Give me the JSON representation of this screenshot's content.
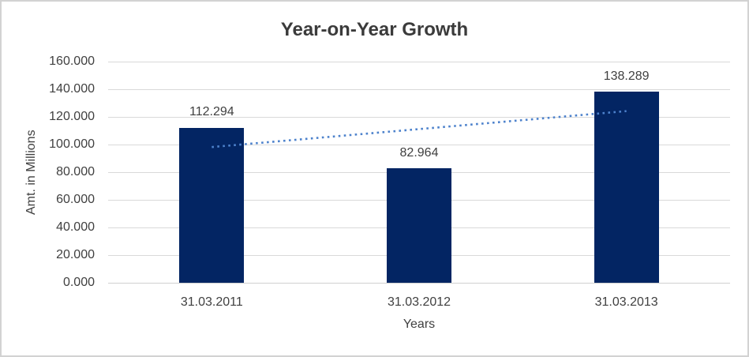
{
  "chart_data": {
    "type": "bar",
    "title": "Year-on-Year Growth",
    "xlabel": "Years",
    "ylabel": "Amt. in Millions",
    "categories": [
      "31.03.2011",
      "31.03.2012",
      "31.03.2013"
    ],
    "values": [
      112.294,
      82.964,
      138.289
    ],
    "data_labels": [
      "112.294",
      "82.964",
      "138.289"
    ],
    "ylim": [
      0,
      160
    ],
    "ytick_step": 20,
    "ytick_labels": [
      "0.000",
      "20.000",
      "40.000",
      "60.000",
      "80.000",
      "100.000",
      "120.000",
      "140.000",
      "160.000"
    ],
    "grid": true,
    "legend_position": "none",
    "trendline": {
      "type": "linear",
      "style": "dotted",
      "endpoint_values": [
        98.18,
        124.18
      ]
    },
    "colors": {
      "bar": "#032563",
      "trendline": "#4d82cc",
      "gridline": "#d9d9d9",
      "axis_line": "#cfcfcf",
      "text": "#404040",
      "title": "#3b3b3b",
      "background": "#ffffff",
      "border": "#d2d2d2"
    }
  }
}
